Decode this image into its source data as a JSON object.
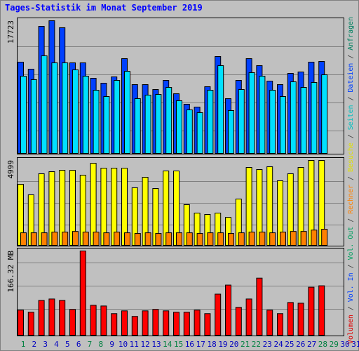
{
  "title": "Tages-Statistik im Monat September 2019",
  "legend_separator": " / ",
  "legend": [
    {
      "text": "Volumen",
      "color": "#e00000"
    },
    {
      "text": "Vol. In",
      "color": "#0040ff"
    },
    {
      "text": "Vol. Out",
      "color": "#00a060"
    },
    {
      "text": "Rechner",
      "color": "#ff8000"
    },
    {
      "text": "Besuche",
      "color": "#e0e000"
    },
    {
      "text": "Seiten",
      "color": "#00c0c0"
    },
    {
      "text": "Dateien",
      "color": "#0040ff"
    },
    {
      "text": "Anfragen",
      "color": "#008060"
    }
  ],
  "categories": [
    "1",
    "2",
    "3",
    "4",
    "5",
    "6",
    "7",
    "8",
    "9",
    "10",
    "11",
    "12",
    "13",
    "14",
    "15",
    "16",
    "17",
    "18",
    "19",
    "20",
    "21",
    "22",
    "23",
    "24",
    "25",
    "26",
    "27",
    "28",
    "29",
    "30",
    "31"
  ],
  "category_colors": [
    "#008040",
    "#0000c0",
    "#0000c0",
    "#0000c0",
    "#0000c0",
    "#0000c0",
    "#008040",
    "#008040",
    "#0000c0",
    "#0000c0",
    "#0000c0",
    "#0000c0",
    "#0000c0",
    "#008040",
    "#008040",
    "#0000c0",
    "#0000c0",
    "#0000c0",
    "#0000c0",
    "#0000c0",
    "#008040",
    "#008040",
    "#0000c0",
    "#0000c0",
    "#0000c0",
    "#0000c0",
    "#0000c0",
    "#008040",
    "#008040",
    "#0000c0",
    "#0000c0"
  ],
  "chart_data": [
    {
      "type": "bar",
      "ylim": [
        0,
        17723
      ],
      "yticks": [
        17723
      ],
      "series": [
        {
          "color": "#0040ff",
          "values": [
            12190,
            11252,
            16972,
            17723,
            16785,
            12096,
            12096,
            10033,
            9377,
            10221,
            12659,
            9189,
            9189,
            8533,
            9752,
            7970,
            6564,
            6189,
            8908,
            12940,
            7314,
            9752,
            12659,
            11721,
            9658,
            9189,
            10690,
            10877,
            12190,
            12284,
            null
          ]
        },
        {
          "color": "#00e0ff",
          "values": [
            10315,
            9846,
            13034,
            12096,
            12096,
            11159,
            10315,
            8439,
            7595,
            9752,
            10971,
            7314,
            7783,
            7877,
            8814,
            7033,
            5814,
            5439,
            8439,
            11721,
            5720,
            8533,
            10784,
            10315,
            8439,
            7595,
            9565,
            8814,
            9471,
            10502,
            null
          ]
        }
      ]
    },
    {
      "type": "bar",
      "ylim": [
        0,
        4999
      ],
      "yticks": [
        4999
      ],
      "series": [
        {
          "color": "#ffff00",
          "values": [
            3594,
            2974,
            4214,
            4338,
            4420,
            4420,
            4131,
            4833,
            4544,
            4544,
            4544,
            3388,
            4007,
            3346,
            4379,
            4379,
            2396,
            1900,
            1818,
            1900,
            1652,
            2727,
            4586,
            4462,
            4627,
            3801,
            4214,
            4586,
            4999,
            4999,
            null
          ]
        },
        {
          "color": "#ff8000",
          "values": [
            740,
            740,
            740,
            780,
            780,
            820,
            780,
            780,
            740,
            780,
            740,
            700,
            740,
            700,
            740,
            740,
            740,
            700,
            740,
            740,
            700,
            740,
            780,
            780,
            740,
            780,
            820,
            820,
            900,
            950,
            null
          ]
        }
      ]
    },
    {
      "type": "bar",
      "ylim": [
        0,
        166.32
      ],
      "yticks": [
        {
          "value": 166.32,
          "label": "166.32 MB"
        }
      ],
      "series": [
        {
          "color": "#ff0000",
          "values": [
            49.5,
            45.4,
            68.7,
            71.5,
            68.7,
            50.9,
            166.32,
            59.1,
            57.7,
            42.6,
            48.1,
            37.1,
            48.1,
            50.9,
            48.1,
            45.4,
            45.4,
            49.5,
            42.6,
            81.1,
            99.0,
            55.0,
            71.5,
            112.7,
            49.5,
            42.6,
            64.6,
            63.2,
            94.8,
            97.6,
            null
          ]
        }
      ]
    }
  ]
}
